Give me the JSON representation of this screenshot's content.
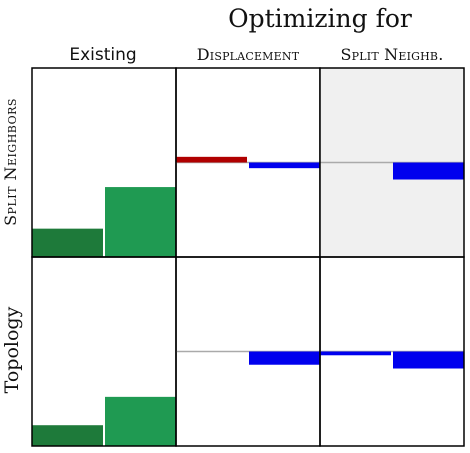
{
  "chart_data": {
    "type": "bar",
    "title": "Optimizing for",
    "column_headers": [
      "Existing",
      "Displacement",
      "Split Neighb."
    ],
    "row_headers": [
      "Split Neighbors",
      "Topology"
    ],
    "note": "values read as signed deltas relative to a baseline (y range -1..1)",
    "ylim": [
      -1,
      1
    ],
    "colors": {
      "existing_left": "#1e7a3a",
      "existing_right": "#1f9a52",
      "positive_delta": "#b00000",
      "negative_delta": "#0000ee",
      "baseline": "#aaaaaa",
      "highlight_bg": "#f0f0f0"
    },
    "cells": [
      {
        "row": 0,
        "col": 0,
        "kind": "existing",
        "values": [
          0.15,
          0.37
        ],
        "highlight": false
      },
      {
        "row": 0,
        "col": 1,
        "kind": "delta",
        "baseline": 0.5,
        "values": [
          0.03,
          -0.03
        ],
        "highlight": false
      },
      {
        "row": 0,
        "col": 2,
        "kind": "delta",
        "baseline": 0.5,
        "values": [
          0.0,
          -0.09
        ],
        "highlight": true
      },
      {
        "row": 1,
        "col": 0,
        "kind": "existing",
        "values": [
          0.11,
          0.26
        ],
        "highlight": false
      },
      {
        "row": 1,
        "col": 1,
        "kind": "delta",
        "baseline": 0.5,
        "values": [
          0.0,
          -0.07
        ],
        "highlight": false
      },
      {
        "row": 1,
        "col": 2,
        "kind": "delta",
        "baseline": 0.5,
        "values": [
          -0.02,
          -0.09
        ],
        "highlight": false
      }
    ]
  }
}
